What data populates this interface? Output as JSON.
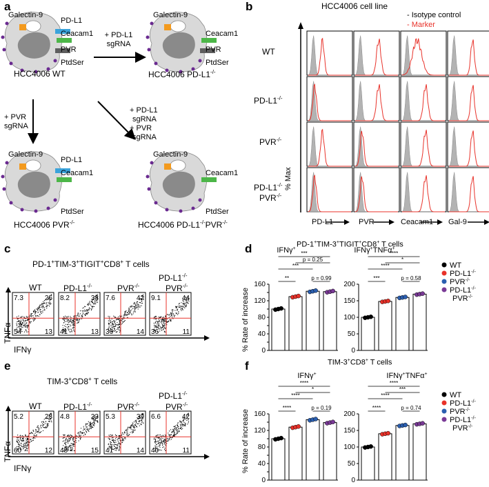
{
  "panels": {
    "a": "a",
    "b": "b",
    "c": "c",
    "d": "d",
    "e": "e",
    "f": "f"
  },
  "panel_a": {
    "cells": {
      "wt": {
        "name": "HCC4006 WT",
        "markers": {
          "gal9": "Galectin-9",
          "pdl1": "PD-L1",
          "ceacam1": "Ceacam1",
          "pvr": "PVR",
          "ptdser": "PtdSer"
        }
      },
      "pdl1ko": {
        "name": "HCC4006 PD-L1",
        "sup": "-/-",
        "markers": {
          "gal9": "Galectin-9",
          "ceacam1": "Ceacam1",
          "pvr": "PVR",
          "ptdser": "PtdSer"
        }
      },
      "pvrko": {
        "name": "HCC4006 PVR",
        "sup": "-/-",
        "markers": {
          "gal9": "Galectin-9",
          "pdl1": "PD-L1",
          "ceacam1": "Ceacam1",
          "ptdser": "PtdSer"
        }
      },
      "dko": {
        "name": "HCC4006 PD-L1",
        "sup1": "-/-",
        "name2": "PVR",
        "sup2": "-/-",
        "markers": {
          "gal9": "Galectin-9",
          "ceacam1": "Ceacam1",
          "ptdser": "PtdSer"
        }
      }
    },
    "arrows": {
      "right": [
        "+ PD-L1",
        "sgRNA"
      ],
      "down": [
        "+ PVR",
        "sgRNA"
      ],
      "diag": [
        "+ PD-L1",
        "sgRNA",
        "+ PVR",
        "sgRNA"
      ]
    },
    "colors": {
      "cell": "#d9d9d9",
      "nucleus": "#8a8a8a",
      "gal9": "#f39a1e",
      "pdl1": "#3aa3db",
      "ceacam1": "#4cb648",
      "pvr": "#5e5e5e",
      "ptdser": "#6a2a90"
    }
  },
  "panel_b": {
    "title": "HCC4006 cell line",
    "legend": [
      "- Isotype control",
      "- Marker"
    ],
    "rows": [
      "WT",
      "PD-L1",
      "PVR",
      "PD-L1"
    ],
    "row_sup": [
      "",
      "-/-",
      "-/-",
      "-/-"
    ],
    "row4_line2": "PVR",
    "row4_sup2": "-/-",
    "cols": [
      "PD-L1",
      "PVR",
      "Ceacam1",
      "Gal-9"
    ],
    "ylabel": "% Max",
    "marker_color": "#e8322a",
    "iso_color": "#b3b3b3"
  },
  "panel_c": {
    "title": "PD-1",
    "sup1": "+",
    "t2": "TIM-3",
    "sup2": "+",
    "t3": "TIGIT",
    "sup3": "+",
    "t4": "CD8",
    "sup4": "+",
    "t5": " T cells",
    "cols": [
      "WT",
      "PD-L1",
      "PVR",
      "PD-L1"
    ],
    "col_sup": [
      "",
      "-/-",
      "-/-",
      "-/-"
    ],
    "col4_line2": "PVR",
    "col4_sup2": "-/-",
    "quadrants": [
      [
        "7.3",
        "26",
        "54",
        "13"
      ],
      [
        "8.2",
        "38",
        "41",
        "13"
      ],
      [
        "7.6",
        "42",
        "36",
        "14"
      ],
      [
        "9.1",
        "44",
        "36",
        "11"
      ]
    ],
    "xlabel": "IFNγ",
    "ylabel": "TNFα"
  },
  "panel_d": {
    "title": "PD-1",
    "t_rest": "TIM-3 TIGIT CD8 T cells",
    "ylabel": "% Rate of increase",
    "legend": [
      "WT",
      "PD-L1",
      "PVR",
      "PD-L1",
      "PVR"
    ],
    "legend_sup": [
      "",
      "-/-",
      "-/-",
      "-/-",
      "-/-"
    ],
    "legend_colors": [
      "#000000",
      "#e8322a",
      "#2b5fb0",
      "#7a3a96"
    ],
    "chart_data": [
      {
        "type": "bar",
        "title": "IFNγ+",
        "categories": [
          "WT",
          "PD-L1-/-",
          "PVR-/-",
          "PD-L1-/- PVR-/-"
        ],
        "values": [
          100,
          130,
          143,
          142
        ],
        "ylim": [
          0,
          160
        ],
        "yticks": [
          0,
          20,
          40,
          60,
          80,
          100,
          120,
          140,
          160
        ],
        "sig": [
          {
            "from": 0,
            "to": 1,
            "label": "**"
          },
          {
            "from": 0,
            "to": 2,
            "label": "***"
          },
          {
            "from": 0,
            "to": 3,
            "label": "***"
          },
          {
            "from": 2,
            "to": 3,
            "label": "p = 0.99"
          },
          {
            "from": 1,
            "to": 3,
            "label": "p = 0.25"
          }
        ]
      },
      {
        "type": "bar",
        "title": "IFNγ+TNFα+",
        "categories": [
          "WT",
          "PD-L1-/-",
          "PVR-/-",
          "PD-L1-/- PVR-/-"
        ],
        "values": [
          100,
          148,
          160,
          170
        ],
        "ylim": [
          0,
          200
        ],
        "yticks": [
          0,
          50,
          100,
          150,
          200
        ],
        "sig": [
          {
            "from": 0,
            "to": 1,
            "label": "***"
          },
          {
            "from": 0,
            "to": 2,
            "label": "****"
          },
          {
            "from": 0,
            "to": 3,
            "label": "****"
          },
          {
            "from": 2,
            "to": 3,
            "label": "p = 0.58"
          },
          {
            "from": 1,
            "to": 3,
            "label": "*"
          }
        ]
      }
    ]
  },
  "panel_e": {
    "title": "TIM-3",
    "sup1": "+",
    "t2": "CD8",
    "sup2": "+",
    "t3": " T cells",
    "cols": [
      "WT",
      "PD-L1",
      "PVR",
      "PD-L1"
    ],
    "col_sup": [
      "",
      "-/-",
      "-/-",
      "-/-"
    ],
    "col4_line2": "PVR",
    "col4_sup2": "-/-",
    "quadrants": [
      [
        "5.2",
        "23",
        "60",
        "12"
      ],
      [
        "4.8",
        "33",
        "48",
        "15"
      ],
      [
        "5.3",
        "39",
        "41",
        "14"
      ],
      [
        "6.6",
        "42",
        "40",
        "11"
      ]
    ],
    "xlabel": "IFNγ",
    "ylabel": "TNFα"
  },
  "panel_f": {
    "title": "TIM-3",
    "sup1": "+",
    "t2": "CD8",
    "sup2": "+",
    "t3": " T cells",
    "ylabel": "% Rate of increase",
    "legend": [
      "WT",
      "PD-L1",
      "PVR",
      "PD-L1",
      "PVR"
    ],
    "legend_sup": [
      "",
      "-/-",
      "-/-",
      "-/-",
      "-/-"
    ],
    "chart_data": [
      {
        "type": "bar",
        "title": "IFNγ+",
        "categories": [
          "WT",
          "PD-L1-/-",
          "PVR-/-",
          "PD-L1-/- PVR-/-"
        ],
        "values": [
          100,
          128,
          146,
          139
        ],
        "ylim": [
          0,
          160
        ],
        "yticks": [
          0,
          20,
          40,
          60,
          80,
          100,
          120,
          140,
          160
        ],
        "sig": [
          {
            "from": 0,
            "to": 1,
            "label": "****"
          },
          {
            "from": 0,
            "to": 2,
            "label": "****"
          },
          {
            "from": 0,
            "to": 3,
            "label": "****"
          },
          {
            "from": 2,
            "to": 3,
            "label": "p = 0.19"
          },
          {
            "from": 1,
            "to": 3,
            "label": "*"
          }
        ]
      },
      {
        "type": "bar",
        "title": "IFNγ+TNFα+",
        "categories": [
          "WT",
          "PD-L1-/-",
          "PVR-/-",
          "PD-L1-/- PVR-/-"
        ],
        "values": [
          100,
          140,
          165,
          170
        ],
        "ylim": [
          0,
          200
        ],
        "yticks": [
          0,
          50,
          100,
          150,
          200
        ],
        "sig": [
          {
            "from": 0,
            "to": 1,
            "label": "****"
          },
          {
            "from": 0,
            "to": 2,
            "label": "****"
          },
          {
            "from": 0,
            "to": 3,
            "label": "****"
          },
          {
            "from": 2,
            "to": 3,
            "label": "p = 0.74"
          },
          {
            "from": 1,
            "to": 3,
            "label": "***"
          }
        ]
      }
    ]
  }
}
